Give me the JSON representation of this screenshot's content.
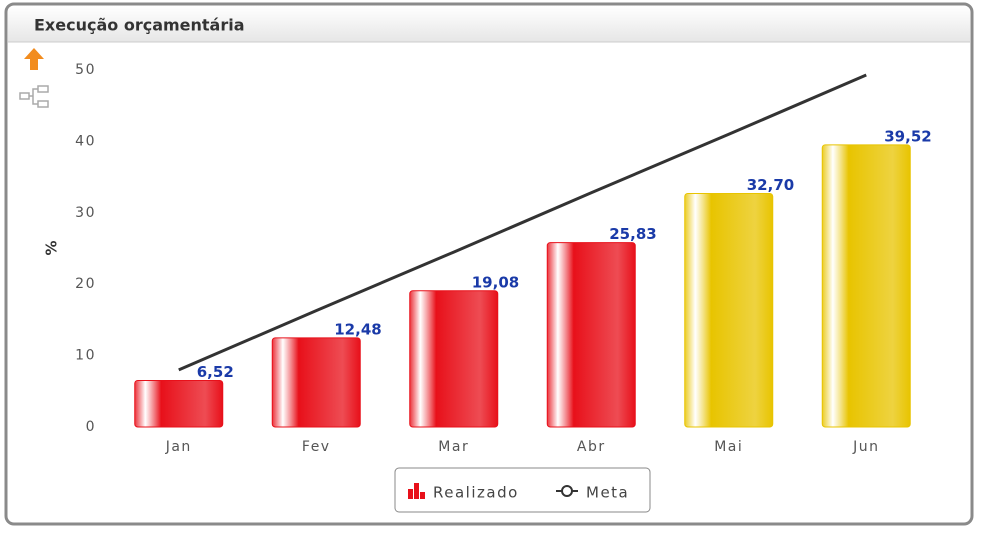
{
  "chart_data": {
    "type": "bar",
    "title": "Execução orçamentária",
    "ylabel": "%",
    "categories": [
      "Jan",
      "Fev",
      "Mar",
      "Abr",
      "Mai",
      "Jun"
    ],
    "series": [
      {
        "name": "Realizado",
        "type": "bar",
        "color": "#e8101a",
        "colors": [
          "#e8101a",
          "#e8101a",
          "#e8101a",
          "#e8101a",
          "#e8c400",
          "#e8c400"
        ],
        "values": [
          6.52,
          12.48,
          19.08,
          25.83,
          32.7,
          39.52
        ],
        "value_labels": [
          "6,52",
          "12,48",
          "19,08",
          "25,83",
          "32,70",
          "39,52"
        ]
      },
      {
        "name": "Meta",
        "type": "line",
        "color": "#333333",
        "values": [
          8,
          16.3,
          24.5,
          32.8,
          41,
          49.3
        ]
      }
    ],
    "ylim": [
      0,
      50
    ],
    "yticks": [
      0,
      10,
      20,
      30,
      40,
      50
    ],
    "legend": "bottom"
  }
}
